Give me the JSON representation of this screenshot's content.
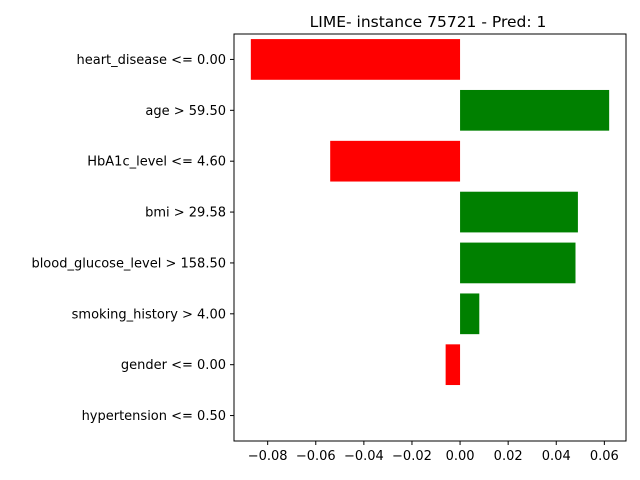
{
  "chart_data": {
    "type": "bar",
    "orientation": "horizontal",
    "title": "LIME- instance 75721 - Pred: 1",
    "xlabel": "",
    "ylabel": "",
    "categories": [
      "heart_disease <= 0.00",
      "age > 59.50",
      "HbA1c_level <= 4.60",
      "bmi > 29.58",
      "blood_glucose_level > 158.50",
      "smoking_history > 4.00",
      "gender <= 0.00",
      "hypertension <= 0.50"
    ],
    "values": [
      -0.087,
      0.062,
      -0.054,
      0.049,
      0.048,
      0.008,
      -0.006,
      0.0
    ],
    "xlim": [
      -0.094,
      0.069
    ],
    "xticks": [
      -0.08,
      -0.06,
      -0.04,
      -0.02,
      0.0,
      0.02,
      0.04,
      0.06
    ],
    "xtick_labels": [
      "−0.08",
      "−0.06",
      "−0.04",
      "−0.02",
      "0.00",
      "0.02",
      "0.04",
      "0.06"
    ],
    "grid": false,
    "legend": "none",
    "colors": {
      "positive": "#008000",
      "negative": "#ff0000"
    }
  }
}
